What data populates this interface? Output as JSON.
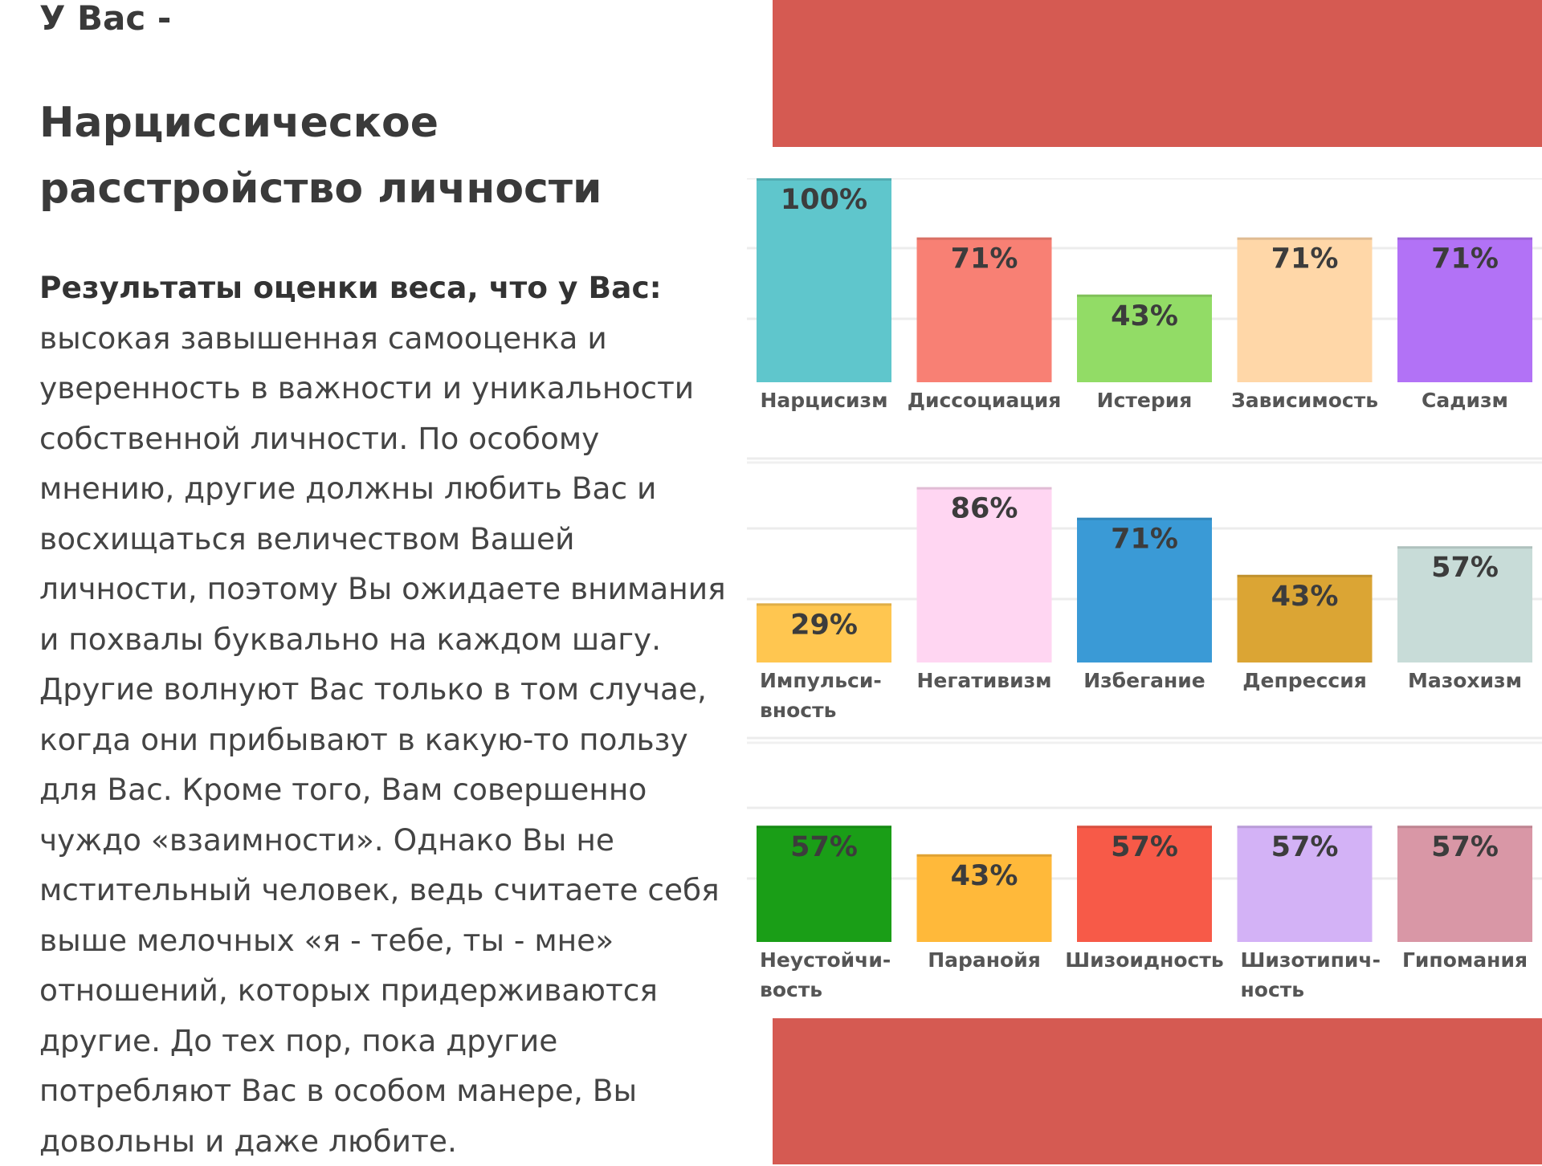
{
  "header": {
    "intro": "У Вас -",
    "diagnosis": "Нарциссическое расстройство личности"
  },
  "result": {
    "label": "Результаты оценки веса, что у Вас:",
    "text": "высокая завышенная самооценка и уверенность в важности и уникальности собственной личности. По особому мнению, другие должны любить Вас и восхищаться величеством Вашей личности, поэтому Вы ожидаете внимания и похвалы буквально на каждом шагу. Другие волнуют Вас только в том случае, когда они прибывают в какую-то пользу для Вас. Кроме того, Вам совершенно чуждо «взаимности». Однако Вы не мстительный человек, ведь считаете себя выше мелочных «я - тебе, ты - мне» отношений, которых придерживаются другие. До тех пор, пока другие потребляют Вас в особом манере, Вы довольны и даже любите."
  },
  "colors": {
    "accent_red": "#d55a52",
    "text": "#3a3a3a"
  },
  "chart_data": [
    {
      "type": "bar",
      "ylim": [
        0,
        100
      ],
      "categories": [
        [
          "Нарцисизм"
        ],
        [
          "Диссоциация"
        ],
        [
          "Истерия"
        ],
        [
          "Зависимость"
        ],
        [
          "Садизм"
        ]
      ],
      "values": [
        100,
        71,
        43,
        71,
        71
      ],
      "value_labels": [
        "100%",
        "71%",
        "43%",
        "71%",
        "71%"
      ],
      "colors": [
        "#5fc6cc",
        "#f88074",
        "#92dc66",
        "#ffd7a8",
        "#b272f6"
      ]
    },
    {
      "type": "bar",
      "ylim": [
        0,
        100
      ],
      "categories": [
        [
          "Импульси-",
          "вность"
        ],
        [
          "Негативизм"
        ],
        [
          "Избегание"
        ],
        [
          "Депрессия"
        ],
        [
          "Мазохизм"
        ]
      ],
      "values": [
        29,
        86,
        71,
        43,
        57
      ],
      "value_labels": [
        "29%",
        "86%",
        "71%",
        "43%",
        "57%"
      ],
      "colors": [
        "#ffc650",
        "#ffd6f2",
        "#3a9ad6",
        "#dba534",
        "#c8dcd8"
      ]
    },
    {
      "type": "bar",
      "ylim": [
        0,
        100
      ],
      "categories": [
        [
          "Неустойчи-",
          "вость"
        ],
        [
          "Паранойя"
        ],
        [
          "Шизоидность"
        ],
        [
          "Шизотипич-",
          "ность"
        ],
        [
          "Гипомания"
        ]
      ],
      "values": [
        57,
        43,
        57,
        57,
        57
      ],
      "value_labels": [
        "57%",
        "43%",
        "57%",
        "57%",
        "57%"
      ],
      "colors": [
        "#1a9e17",
        "#ffb93a",
        "#f75a48",
        "#d3b2f6",
        "#d997a6"
      ]
    }
  ]
}
